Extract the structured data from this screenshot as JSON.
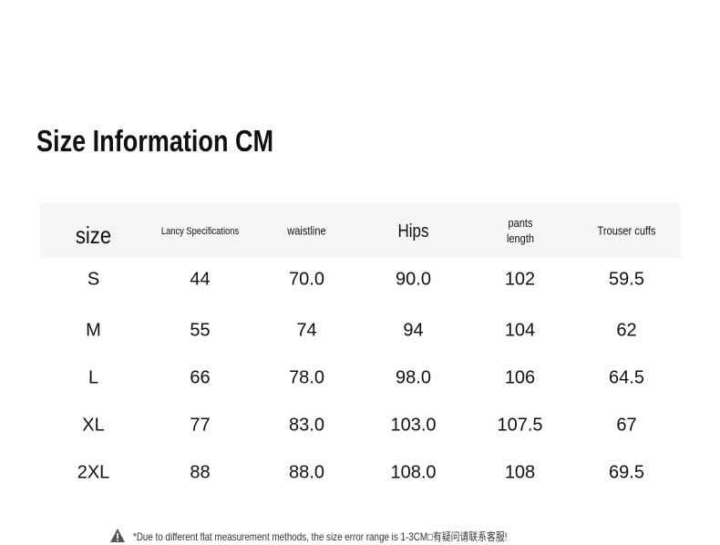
{
  "title": "Size Information CM",
  "table": {
    "header": [
      "size",
      "Lancy Specifications",
      "waistline",
      "Hips",
      "pants length",
      "Trouser cuffs"
    ],
    "rows": [
      [
        "S",
        "44",
        "70.0",
        "90.0",
        "102",
        "59.5"
      ],
      [
        "M",
        "55",
        "74",
        "94",
        "104",
        "62"
      ],
      [
        "L",
        "66",
        "78.0",
        "98.0",
        "106",
        "64.5"
      ],
      [
        "XL",
        "77",
        "83.0",
        "103.0",
        "107.5",
        "67"
      ],
      [
        "2XL",
        "88",
        "88.0",
        "108.0",
        "108",
        "69.5"
      ]
    ]
  },
  "note": "*Due to different flat measurement methods, the size error range is 1-3CM□有疑问请联系客服!"
}
